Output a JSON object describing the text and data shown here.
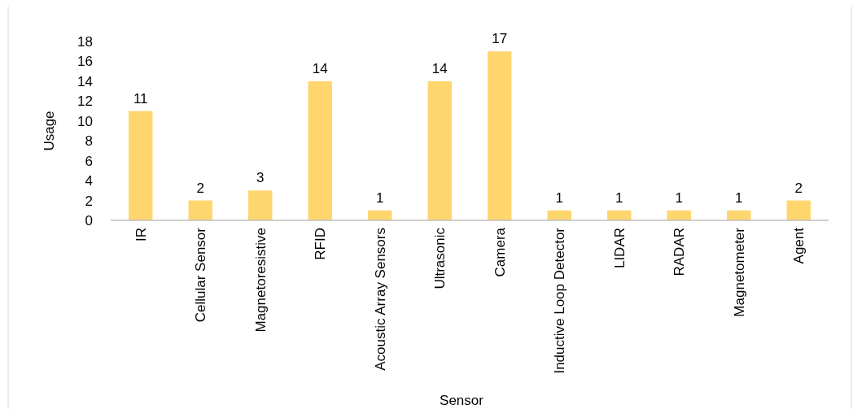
{
  "chart_data": {
    "type": "bar",
    "xlabel": "Sensor",
    "ylabel": "Usage",
    "categories": [
      "IR",
      "Cellular Sensor",
      "Magnetoresistive",
      "RFID",
      "Acoustic Array Sensors",
      "Ultrasonic",
      "Camera",
      "Inductive Loop Detector",
      "LIDAR",
      "RADAR",
      "Magnetometer",
      "Agent"
    ],
    "values": [
      11,
      2,
      3,
      14,
      1,
      14,
      17,
      1,
      1,
      1,
      1,
      2
    ],
    "color": "#ffd66e",
    "ylim": [
      0,
      18
    ],
    "yticks": [
      0,
      2,
      4,
      6,
      8,
      10,
      12,
      14,
      16,
      18
    ],
    "data_labels": true,
    "grid": false
  }
}
